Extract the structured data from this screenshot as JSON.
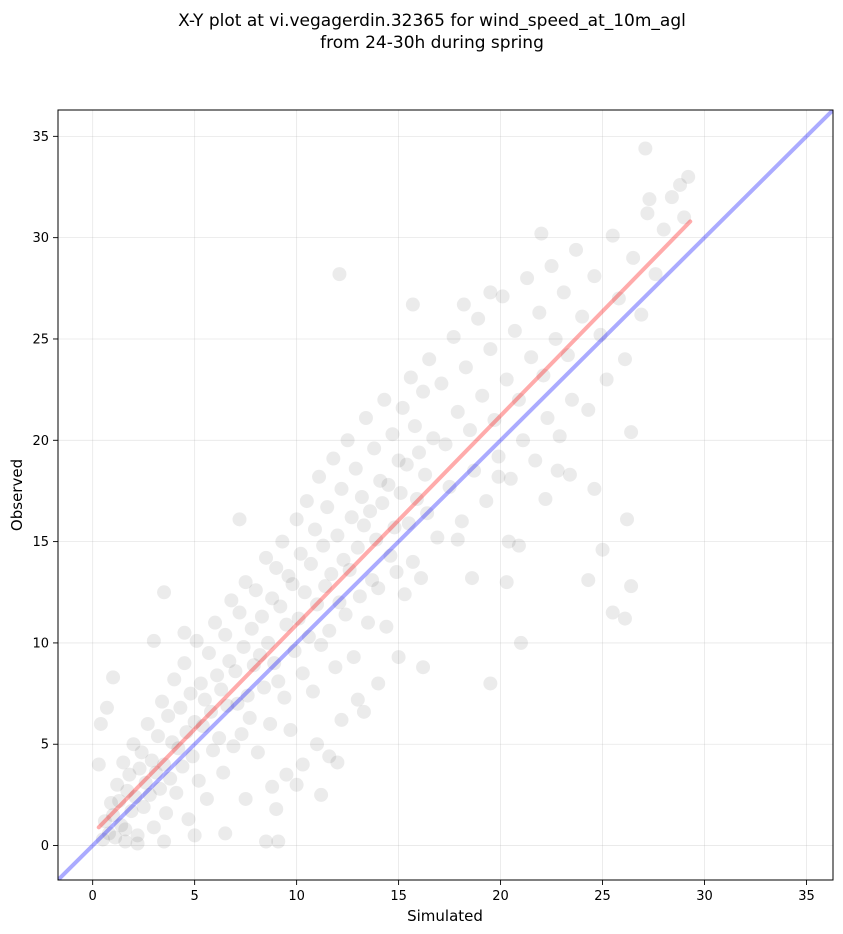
{
  "chart_data": {
    "type": "scatter",
    "title_lines": [
      "X-Y plot at vi.vegagerdin.32365 for wind_speed_at_10m_agl",
      "from 24-30h during spring"
    ],
    "xlabel": "Simulated",
    "ylabel": "Observed",
    "xlim": [
      -1.7,
      36.3
    ],
    "ylim": [
      -1.7,
      36.3
    ],
    "xticks": [
      0,
      5,
      10,
      15,
      20,
      25,
      30,
      35
    ],
    "yticks": [
      0,
      5,
      10,
      15,
      20,
      25,
      30,
      35
    ],
    "grid": true,
    "point_color": "#000000",
    "point_opacity": 0.08,
    "identity_line": {
      "color": "#0000ff",
      "opacity": 0.33,
      "from": [
        -1.7,
        -1.7
      ],
      "to": [
        36.3,
        36.3
      ]
    },
    "fit_line": {
      "color": "#ff0000",
      "opacity": 0.33,
      "from": [
        0.3,
        0.9
      ],
      "to": [
        29.3,
        30.8
      ]
    },
    "points": [
      [
        0.5,
        0.3
      ],
      [
        0.6,
        1.2
      ],
      [
        0.8,
        0.6
      ],
      [
        0.9,
        2.1
      ],
      [
        1.0,
        1.5
      ],
      [
        1.1,
        0.4
      ],
      [
        1.2,
        3.0
      ],
      [
        1.3,
        2.2
      ],
      [
        1.4,
        1.0
      ],
      [
        1.5,
        4.1
      ],
      [
        1.6,
        0.8
      ],
      [
        1.7,
        2.7
      ],
      [
        1.8,
        3.5
      ],
      [
        1.9,
        1.7
      ],
      [
        2.0,
        5.0
      ],
      [
        2.1,
        2.4
      ],
      [
        2.2,
        0.5
      ],
      [
        2.3,
        3.8
      ],
      [
        2.4,
        4.6
      ],
      [
        2.5,
        1.9
      ],
      [
        2.6,
        3.1
      ],
      [
        2.7,
        6.0
      ],
      [
        2.8,
        2.5
      ],
      [
        2.9,
        4.2
      ],
      [
        3.0,
        0.9
      ],
      [
        3.1,
        3.6
      ],
      [
        3.2,
        5.4
      ],
      [
        3.3,
        2.8
      ],
      [
        3.4,
        7.1
      ],
      [
        3.5,
        4.0
      ],
      [
        3.6,
        1.6
      ],
      [
        3.7,
        6.4
      ],
      [
        3.8,
        3.3
      ],
      [
        3.9,
        5.1
      ],
      [
        4.0,
        8.2
      ],
      [
        4.1,
        2.6
      ],
      [
        4.2,
        4.8
      ],
      [
        4.3,
        6.8
      ],
      [
        4.4,
        3.9
      ],
      [
        4.5,
        9.0
      ],
      [
        4.6,
        5.6
      ],
      [
        4.7,
        1.3
      ],
      [
        4.8,
        7.5
      ],
      [
        4.9,
        4.4
      ],
      [
        5.0,
        6.1
      ],
      [
        5.1,
        10.1
      ],
      [
        5.2,
        3.2
      ],
      [
        5.3,
        8.0
      ],
      [
        5.4,
        5.9
      ],
      [
        5.5,
        7.2
      ],
      [
        5.6,
        2.3
      ],
      [
        5.7,
        9.5
      ],
      [
        5.8,
        6.6
      ],
      [
        5.9,
        4.7
      ],
      [
        6.0,
        11.0
      ],
      [
        6.1,
        8.4
      ],
      [
        6.2,
        5.3
      ],
      [
        6.3,
        7.7
      ],
      [
        6.4,
        3.6
      ],
      [
        6.5,
        10.4
      ],
      [
        6.6,
        6.9
      ],
      [
        6.7,
        9.1
      ],
      [
        6.8,
        12.1
      ],
      [
        6.9,
        4.9
      ],
      [
        7.0,
        8.6
      ],
      [
        7.1,
        7.0
      ],
      [
        7.2,
        11.5
      ],
      [
        7.3,
        5.5
      ],
      [
        7.4,
        9.8
      ],
      [
        7.5,
        13.0
      ],
      [
        7.6,
        7.4
      ],
      [
        7.7,
        6.3
      ],
      [
        7.8,
        10.7
      ],
      [
        7.9,
        8.9
      ],
      [
        8.0,
        12.6
      ],
      [
        8.1,
        4.6
      ],
      [
        8.2,
        9.4
      ],
      [
        8.3,
        11.3
      ],
      [
        8.4,
        7.8
      ],
      [
        8.5,
        14.2
      ],
      [
        8.6,
        10.0
      ],
      [
        8.7,
        6.0
      ],
      [
        8.8,
        12.2
      ],
      [
        8.9,
        9.0
      ],
      [
        9.0,
        13.7
      ],
      [
        9.1,
        8.1
      ],
      [
        9.2,
        11.8
      ],
      [
        9.3,
        15.0
      ],
      [
        9.4,
        7.3
      ],
      [
        9.5,
        10.9
      ],
      [
        9.6,
        13.3
      ],
      [
        9.7,
        5.7
      ],
      [
        9.8,
        12.9
      ],
      [
        9.9,
        9.6
      ],
      [
        10.0,
        16.1
      ],
      [
        10.1,
        11.2
      ],
      [
        10.2,
        14.4
      ],
      [
        10.3,
        8.5
      ],
      [
        10.4,
        12.5
      ],
      [
        10.5,
        17.0
      ],
      [
        10.6,
        10.3
      ],
      [
        10.7,
        13.9
      ],
      [
        10.8,
        7.6
      ],
      [
        10.9,
        15.6
      ],
      [
        11.0,
        11.9
      ],
      [
        11.1,
        18.2
      ],
      [
        11.2,
        9.9
      ],
      [
        11.3,
        14.8
      ],
      [
        11.4,
        12.8
      ],
      [
        11.5,
        16.7
      ],
      [
        11.6,
        10.6
      ],
      [
        11.7,
        13.4
      ],
      [
        11.8,
        19.1
      ],
      [
        11.9,
        8.8
      ],
      [
        12.0,
        15.3
      ],
      [
        12.1,
        12.0
      ],
      [
        12.2,
        17.6
      ],
      [
        12.3,
        14.1
      ],
      [
        12.4,
        11.4
      ],
      [
        12.5,
        20.0
      ],
      [
        12.6,
        13.6
      ],
      [
        12.7,
        16.2
      ],
      [
        12.8,
        9.3
      ],
      [
        12.9,
        18.6
      ],
      [
        13.0,
        14.7
      ],
      [
        13.1,
        12.3
      ],
      [
        13.2,
        17.2
      ],
      [
        13.3,
        15.8
      ],
      [
        13.4,
        21.1
      ],
      [
        13.5,
        11.0
      ],
      [
        13.6,
        16.5
      ],
      [
        13.7,
        13.1
      ],
      [
        13.8,
        19.6
      ],
      [
        13.9,
        15.1
      ],
      [
        14.0,
        12.7
      ],
      [
        14.1,
        18.0
      ],
      [
        14.2,
        16.9
      ],
      [
        14.3,
        22.0
      ],
      [
        14.4,
        10.8
      ],
      [
        14.5,
        17.8
      ],
      [
        14.6,
        14.3
      ],
      [
        14.7,
        20.3
      ],
      [
        14.8,
        15.7
      ],
      [
        14.9,
        13.5
      ],
      [
        15.0,
        19.0
      ],
      [
        15.1,
        17.4
      ],
      [
        15.2,
        21.6
      ],
      [
        15.3,
        12.4
      ],
      [
        15.4,
        18.8
      ],
      [
        15.5,
        15.9
      ],
      [
        15.6,
        23.1
      ],
      [
        15.7,
        14.0
      ],
      [
        15.8,
        20.7
      ],
      [
        15.9,
        17.1
      ],
      [
        16.0,
        19.4
      ],
      [
        16.1,
        13.2
      ],
      [
        16.2,
        22.4
      ],
      [
        16.3,
        18.3
      ],
      [
        16.4,
        16.4
      ],
      [
        16.5,
        24.0
      ],
      [
        16.7,
        20.1
      ],
      [
        16.9,
        15.2
      ],
      [
        17.1,
        22.8
      ],
      [
        17.3,
        19.8
      ],
      [
        17.5,
        17.7
      ],
      [
        17.7,
        25.1
      ],
      [
        17.9,
        21.4
      ],
      [
        18.1,
        16.0
      ],
      [
        18.3,
        23.6
      ],
      [
        18.5,
        20.5
      ],
      [
        18.7,
        18.5
      ],
      [
        18.9,
        26.0
      ],
      [
        19.1,
        22.2
      ],
      [
        19.3,
        17.0
      ],
      [
        19.5,
        24.5
      ],
      [
        19.7,
        21.0
      ],
      [
        19.9,
        19.2
      ],
      [
        20.1,
        27.1
      ],
      [
        20.3,
        23.0
      ],
      [
        20.5,
        18.1
      ],
      [
        20.7,
        25.4
      ],
      [
        20.9,
        22.0
      ],
      [
        21.1,
        20.0
      ],
      [
        21.3,
        28.0
      ],
      [
        21.5,
        24.1
      ],
      [
        21.7,
        19.0
      ],
      [
        21.9,
        26.3
      ],
      [
        22.1,
        23.2
      ],
      [
        22.3,
        21.1
      ],
      [
        22.5,
        28.6
      ],
      [
        22.7,
        25.0
      ],
      [
        22.9,
        20.2
      ],
      [
        23.1,
        27.3
      ],
      [
        23.3,
        24.2
      ],
      [
        23.5,
        22.0
      ],
      [
        23.7,
        29.4
      ],
      [
        24.0,
        26.1
      ],
      [
        24.3,
        21.5
      ],
      [
        24.6,
        28.1
      ],
      [
        24.9,
        25.2
      ],
      [
        25.2,
        23.0
      ],
      [
        25.5,
        30.1
      ],
      [
        25.8,
        27.0
      ],
      [
        26.1,
        24.0
      ],
      [
        26.5,
        29.0
      ],
      [
        26.9,
        26.2
      ],
      [
        27.2,
        31.2
      ],
      [
        27.6,
        28.2
      ],
      [
        28.0,
        30.4
      ],
      [
        28.4,
        32.0
      ],
      [
        28.8,
        32.6
      ],
      [
        29.2,
        33.0
      ],
      [
        27.1,
        34.4
      ],
      [
        27.3,
        31.9
      ],
      [
        29.0,
        31.0
      ],
      [
        22.0,
        30.2
      ],
      [
        12.1,
        28.2
      ],
      [
        15.7,
        26.7
      ],
      [
        19.5,
        27.3
      ],
      [
        18.2,
        26.7
      ],
      [
        26.2,
        16.1
      ],
      [
        25.5,
        11.5
      ],
      [
        26.4,
        12.8
      ],
      [
        26.1,
        11.2
      ],
      [
        21.0,
        10.0
      ],
      [
        19.5,
        8.0
      ],
      [
        16.2,
        8.8
      ],
      [
        20.3,
        13.0
      ],
      [
        24.3,
        13.1
      ],
      [
        25.0,
        14.6
      ],
      [
        24.6,
        17.6
      ],
      [
        26.4,
        20.4
      ],
      [
        20.4,
        15.0
      ],
      [
        20.9,
        14.8
      ],
      [
        19.9,
        18.2
      ],
      [
        22.2,
        17.1
      ],
      [
        23.4,
        18.3
      ],
      [
        22.8,
        18.5
      ],
      [
        17.9,
        15.1
      ],
      [
        18.6,
        13.2
      ],
      [
        15.0,
        9.3
      ],
      [
        8.5,
        0.2
      ],
      [
        9.1,
        0.2
      ],
      [
        9.0,
        1.8
      ],
      [
        7.5,
        2.3
      ],
      [
        6.5,
        0.6
      ],
      [
        5.0,
        0.5
      ],
      [
        3.5,
        0.2
      ],
      [
        2.2,
        0.1
      ],
      [
        1.6,
        0.2
      ],
      [
        0.3,
        4.0
      ],
      [
        0.4,
        6.0
      ],
      [
        0.7,
        6.8
      ],
      [
        1.0,
        8.3
      ],
      [
        3.5,
        12.5
      ],
      [
        7.2,
        16.1
      ],
      [
        4.5,
        10.5
      ],
      [
        3.0,
        10.1
      ],
      [
        12.0,
        4.1
      ],
      [
        11.2,
        2.5
      ],
      [
        10.3,
        4.0
      ],
      [
        11.0,
        5.0
      ],
      [
        13.3,
        6.6
      ],
      [
        14.0,
        8.0
      ],
      [
        13.0,
        7.2
      ],
      [
        12.2,
        6.2
      ],
      [
        10.0,
        3.0
      ],
      [
        9.5,
        3.5
      ],
      [
        8.8,
        2.9
      ],
      [
        11.6,
        4.4
      ]
    ]
  }
}
